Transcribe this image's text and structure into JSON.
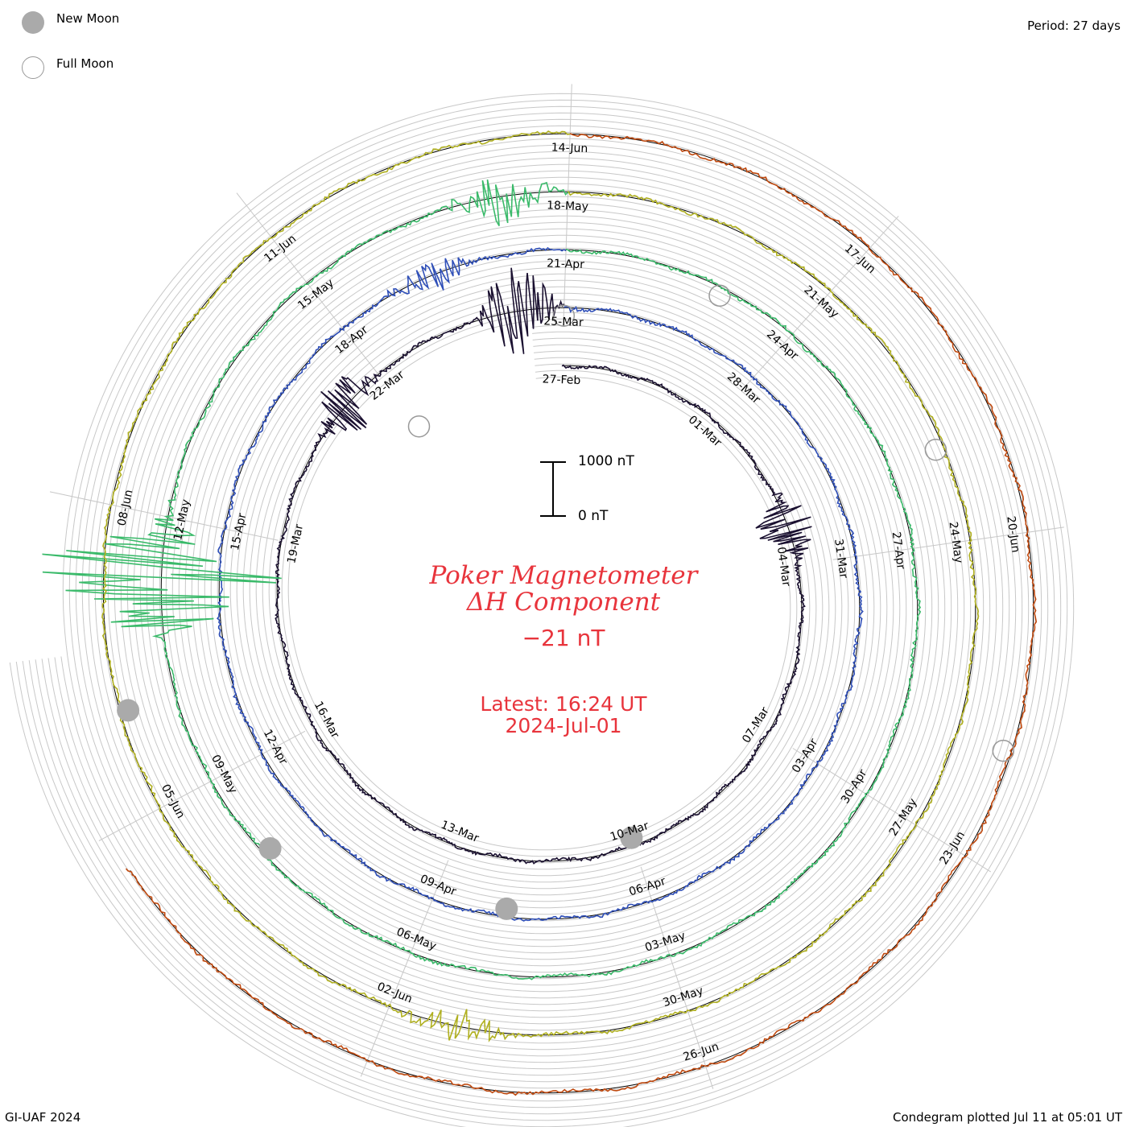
{
  "legend": {
    "new_moon": "New Moon",
    "full_moon": "Full Moon",
    "new_moon_color": "#aaaaaa",
    "full_moon_color": "#999999"
  },
  "period_text": "Period: 27 days",
  "credit": "GI-UAF 2024",
  "plotted": "Condegram plotted Jul 11 at 05:01 UT",
  "title": {
    "line1": "Poker Magnetometer",
    "line2": "ΔH Component",
    "current_value": "−21 nT",
    "latest_time": "Latest: 16:24 UT",
    "latest_date": "2024-Jul-01",
    "color": "#e8343c"
  },
  "scale": {
    "top_label": "1000 nT",
    "bottom_label": "0 nT"
  },
  "chart_data": {
    "type": "line",
    "layout": "spiral condegram",
    "period_days": 27,
    "start_date": "2024-02-27",
    "end_date": "2024-07-01",
    "units": "nT",
    "series_colors": [
      "#1a1030",
      "#23237a",
      "#2f4fb8",
      "#2a9aa8",
      "#3aba6a",
      "#6cbf2a",
      "#b0b020",
      "#c77a18",
      "#c04a10"
    ],
    "date_labels": [
      "27-Feb",
      "01-Mar",
      "04-Mar",
      "07-Mar",
      "10-Mar",
      "13-Mar",
      "16-Mar",
      "19-Mar",
      "22-Mar",
      "25-Mar",
      "28-Mar",
      "31-Mar",
      "03-Apr",
      "06-Apr",
      "09-Apr",
      "12-Apr",
      "15-Apr",
      "18-Apr",
      "21-Apr",
      "24-Apr",
      "27-Apr",
      "30-Apr",
      "03-May",
      "06-May",
      "09-May",
      "12-May",
      "15-May",
      "18-May",
      "21-May",
      "24-May",
      "27-May",
      "30-May",
      "02-Jun",
      "05-Jun",
      "08-Jun",
      "11-Jun",
      "14-Jun",
      "17-Jun",
      "20-Jun",
      "23-Jun",
      "26-Jun"
    ],
    "new_moons": [
      "2024-03-10",
      "2024-04-08",
      "2024-05-08",
      "2024-06-06"
    ],
    "full_moons": [
      "2024-02-24",
      "2024-03-25",
      "2024-04-23",
      "2024-05-23",
      "2024-06-22"
    ],
    "disturbances": [
      {
        "date": "2024-03-03",
        "peak_nT": 600
      },
      {
        "date": "2024-03-21",
        "peak_nT": 600
      },
      {
        "date": "2024-03-24",
        "peak_nT": 900
      },
      {
        "date": "2024-04-19",
        "peak_nT": 300
      },
      {
        "date": "2024-05-11",
        "peak_nT": 2600
      },
      {
        "date": "2024-05-17",
        "peak_nT": 500
      },
      {
        "date": "2024-06-01",
        "peak_nT": 300
      }
    ]
  }
}
